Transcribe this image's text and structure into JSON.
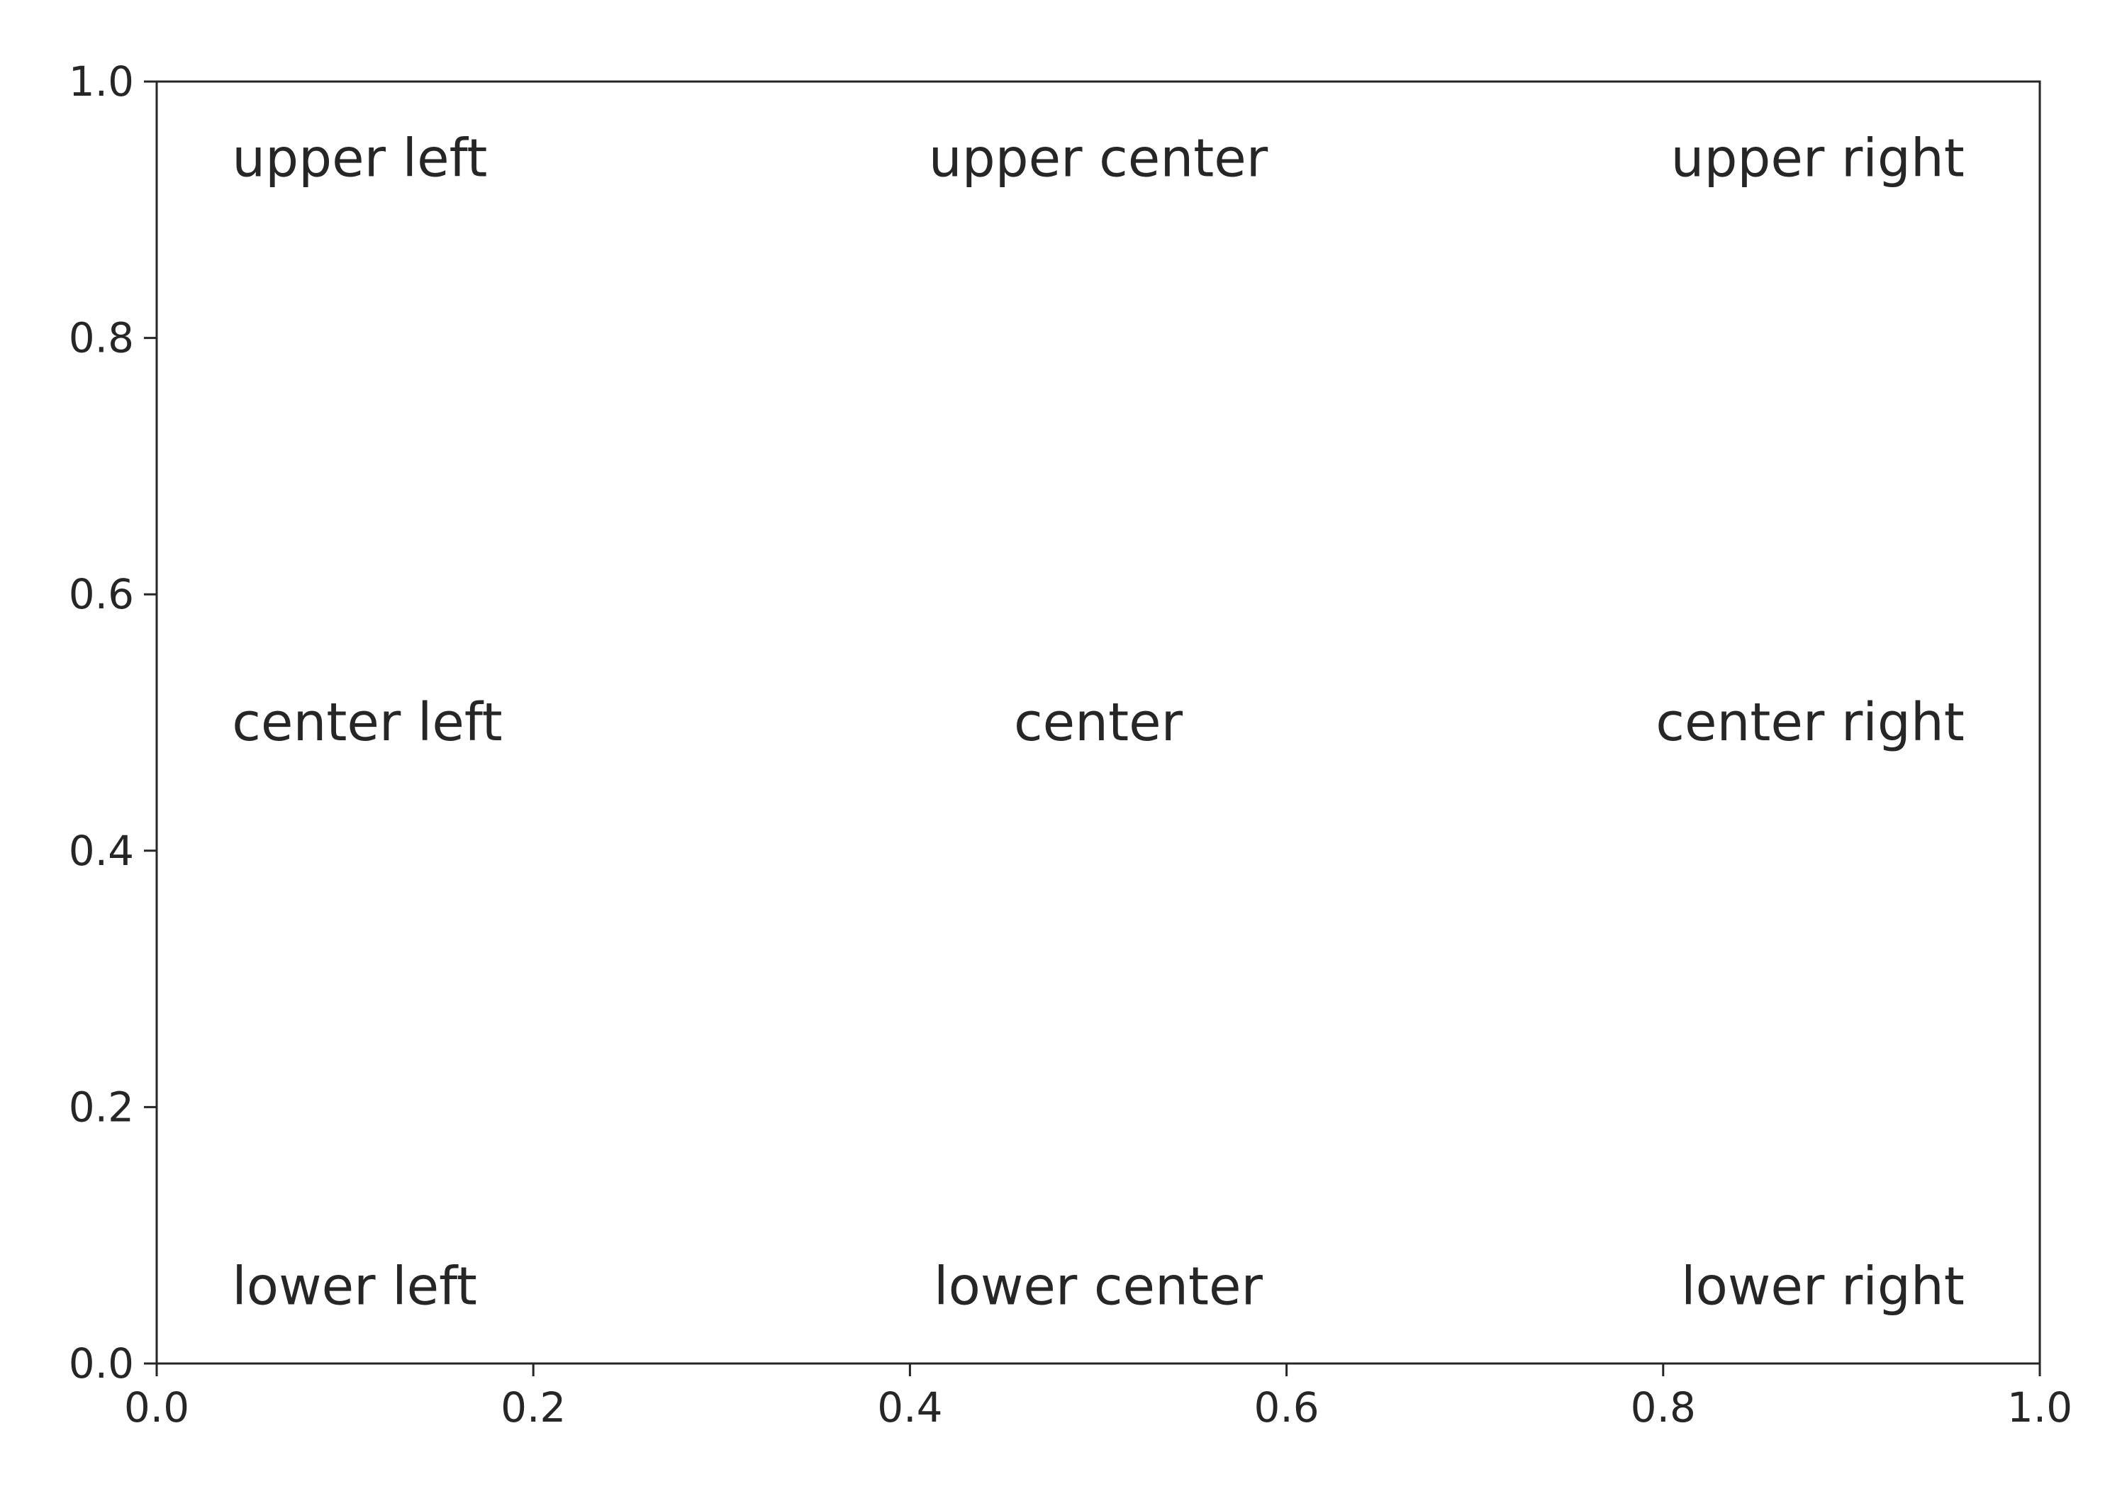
{
  "chart_data": {
    "type": "scatter",
    "title": "",
    "xlabel": "",
    "ylabel": "",
    "xlim": [
      0.0,
      1.0
    ],
    "ylim": [
      0.0,
      1.0
    ],
    "grid": false,
    "x_ticks": [
      {
        "value": 0.0,
        "label": "0.0"
      },
      {
        "value": 0.2,
        "label": "0.2"
      },
      {
        "value": 0.4,
        "label": "0.4"
      },
      {
        "value": 0.6,
        "label": "0.6"
      },
      {
        "value": 0.8,
        "label": "0.8"
      },
      {
        "value": 1.0,
        "label": "1.0"
      }
    ],
    "y_ticks": [
      {
        "value": 0.0,
        "label": "0.0"
      },
      {
        "value": 0.2,
        "label": "0.2"
      },
      {
        "value": 0.4,
        "label": "0.4"
      },
      {
        "value": 0.6,
        "label": "0.6"
      },
      {
        "value": 0.8,
        "label": "0.8"
      },
      {
        "value": 1.0,
        "label": "1.0"
      }
    ],
    "annotations": [
      {
        "text": "upper left",
        "x": 0.04,
        "y": 0.94,
        "align": "start"
      },
      {
        "text": "upper center",
        "x": 0.5,
        "y": 0.94,
        "align": "middle"
      },
      {
        "text": "upper right",
        "x": 0.96,
        "y": 0.94,
        "align": "end"
      },
      {
        "text": "center left",
        "x": 0.04,
        "y": 0.5,
        "align": "start"
      },
      {
        "text": "center",
        "x": 0.5,
        "y": 0.5,
        "align": "middle"
      },
      {
        "text": "center right",
        "x": 0.96,
        "y": 0.5,
        "align": "end"
      },
      {
        "text": "lower left",
        "x": 0.04,
        "y": 0.06,
        "align": "start"
      },
      {
        "text": "lower center",
        "x": 0.5,
        "y": 0.06,
        "align": "middle"
      },
      {
        "text": "lower right",
        "x": 0.96,
        "y": 0.06,
        "align": "end"
      }
    ],
    "colors": {
      "axis": "#262626",
      "text": "#262626",
      "background": "#ffffff"
    }
  }
}
